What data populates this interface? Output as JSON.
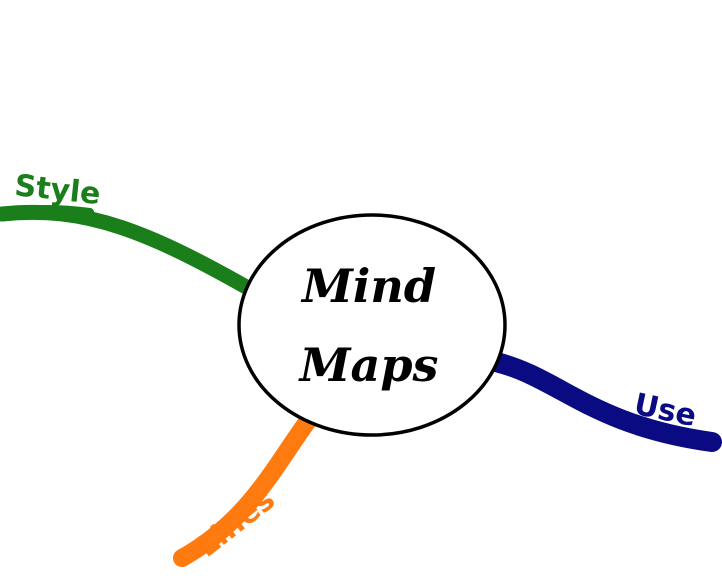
{
  "center": {
    "line1": "Mind",
    "line2": "Maps",
    "text_color": "#000000"
  },
  "branches": [
    {
      "id": "style",
      "label": "Style",
      "color": "#1a7f1a"
    },
    {
      "id": "lines",
      "label": "Lines",
      "color": "#ff7a0f"
    },
    {
      "id": "use",
      "label": "Use",
      "color": "#0a0a82"
    }
  ]
}
